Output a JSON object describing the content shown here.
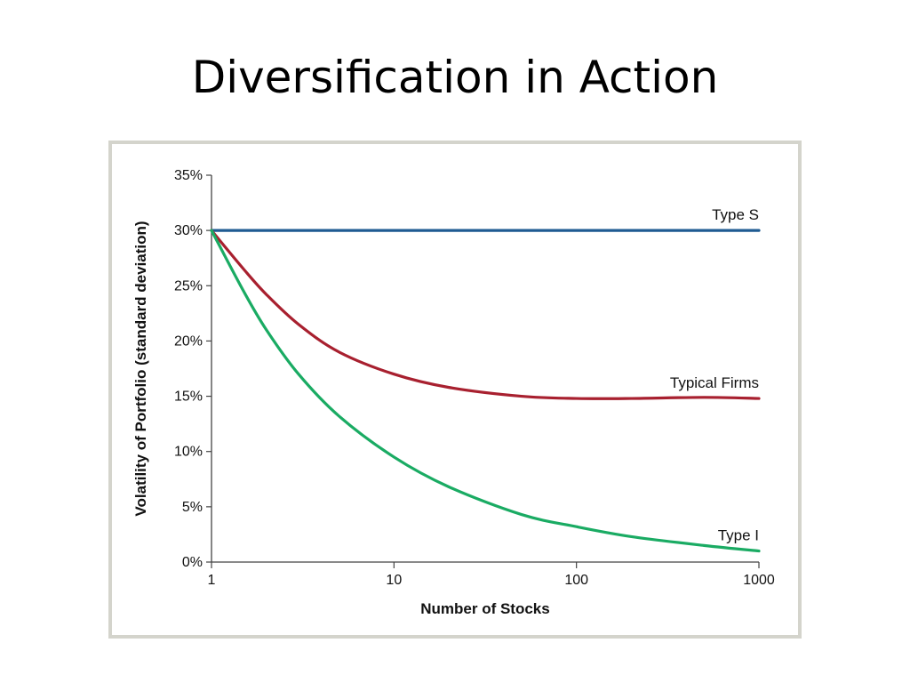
{
  "slide": {
    "title": "Diversification in Action"
  },
  "chart_data": {
    "type": "line",
    "title": "",
    "xlabel": "Number of Stocks",
    "ylabel": "Volatility of Portfolio (standard deviation)",
    "x_scale": "log",
    "xlim": [
      1,
      1000
    ],
    "ylim": [
      0,
      35
    ],
    "x_ticks": [
      "1",
      "10",
      "100",
      "1000"
    ],
    "x_tick_values": [
      1,
      10,
      100,
      1000
    ],
    "y_ticks": [
      "0%",
      "5%",
      "10%",
      "15%",
      "20%",
      "25%",
      "30%",
      "35%"
    ],
    "y_tick_values": [
      0,
      5,
      10,
      15,
      20,
      25,
      30,
      35
    ],
    "grid": false,
    "series": [
      {
        "name": "Type S",
        "color": "#1f5b92",
        "x": [
          1,
          2,
          5,
          10,
          20,
          50,
          100,
          200,
          500,
          1000
        ],
        "y": [
          30,
          30,
          30,
          30,
          30,
          30,
          30,
          30,
          30,
          30
        ]
      },
      {
        "name": "Typical Firms",
        "color": "#a8202f",
        "x": [
          1,
          1.5,
          2,
          3,
          5,
          10,
          20,
          50,
          100,
          200,
          500,
          1000
        ],
        "y": [
          30,
          26.5,
          24.2,
          21.5,
          19.0,
          17.0,
          15.8,
          15.0,
          14.8,
          14.8,
          14.9,
          14.8
        ]
      },
      {
        "name": "Type I",
        "color": "#1aab63",
        "x": [
          1,
          1.5,
          2,
          3,
          5,
          10,
          20,
          50,
          100,
          200,
          500,
          1000
        ],
        "y": [
          30,
          24.5,
          21.0,
          17.0,
          13.2,
          9.5,
          6.8,
          4.3,
          3.2,
          2.3,
          1.5,
          1.0
        ]
      }
    ]
  }
}
